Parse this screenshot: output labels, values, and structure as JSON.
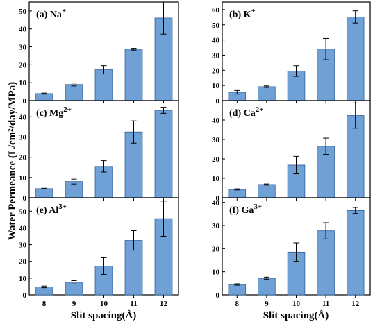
{
  "chart_data": {
    "type": "bar",
    "ylabel": "Water Permeance (L/cm²/day/MPa)",
    "xlabel": "Slit spacing(Å)",
    "categories": [
      "8",
      "9",
      "10",
      "11",
      "12"
    ],
    "panels": [
      {
        "label": "(a) Na",
        "ion_charge": "+",
        "ylim": [
          0,
          55
        ],
        "yticks": [
          0,
          10,
          20,
          30,
          40,
          50
        ],
        "values": [
          3.9,
          9.0,
          17.2,
          28.7,
          46.1
        ],
        "errors": [
          0.3,
          0.8,
          2.3,
          0.5,
          9.0
        ]
      },
      {
        "label": "(b) K",
        "ion_charge": "+",
        "ylim": [
          0,
          65
        ],
        "yticks": [
          0,
          10,
          20,
          30,
          40,
          50,
          60
        ],
        "values": [
          5.5,
          9.2,
          19.5,
          34.0,
          55.2
        ],
        "errors": [
          1.2,
          0.5,
          3.5,
          7.0,
          4.0
        ]
      },
      {
        "label": "(c) Mg",
        "ion_charge": "2+",
        "ylim": [
          0,
          48
        ],
        "yticks": [
          0,
          10,
          20,
          30,
          40
        ],
        "values": [
          4.5,
          8.0,
          15.5,
          32.5,
          43.2
        ],
        "errors": [
          0.2,
          1.2,
          2.8,
          5.5,
          1.5
        ]
      },
      {
        "label": "(d) Ca",
        "ion_charge": "2+",
        "ylim": [
          0,
          50
        ],
        "yticks": [
          0,
          10,
          20,
          30,
          40
        ],
        "values": [
          4.3,
          6.8,
          16.8,
          26.5,
          42.3
        ],
        "errors": [
          0.3,
          0.3,
          4.5,
          4.2,
          6.5
        ]
      },
      {
        "label": "(e) Al",
        "ion_charge": "3+",
        "ylim": [
          0,
          58
        ],
        "yticks": [
          0,
          10,
          20,
          30,
          40,
          50
        ],
        "values": [
          4.8,
          7.5,
          17.2,
          32.5,
          45.5
        ],
        "errors": [
          0.5,
          1.0,
          5.0,
          5.8,
          10.5
        ]
      },
      {
        "label": "(f) Ga",
        "ion_charge": "3+",
        "ylim": [
          0,
          42
        ],
        "yticks": [
          0,
          10,
          20,
          30,
          40
        ],
        "values": [
          4.5,
          7.2,
          18.5,
          27.7,
          36.5
        ],
        "errors": [
          0.3,
          0.5,
          4.0,
          3.5,
          1.3
        ]
      }
    ],
    "bar_color": "#6fa0d6",
    "bar_edge_color": "#2f5f94"
  }
}
